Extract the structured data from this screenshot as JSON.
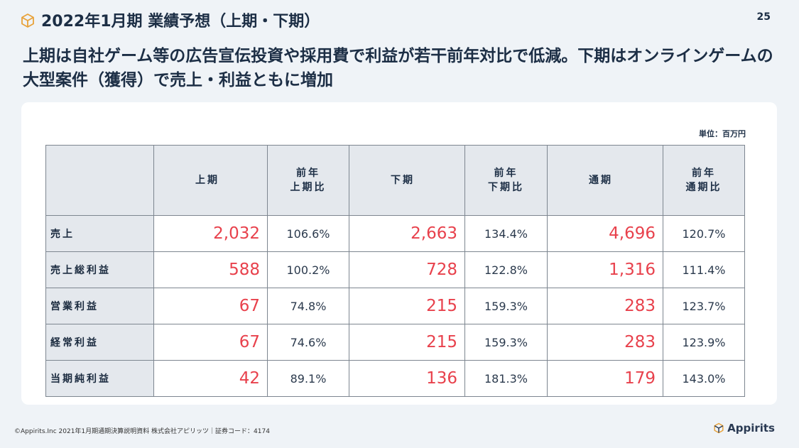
{
  "header": {
    "title": "2022年1月期 業績予想（上期・下期）",
    "page_number": "25",
    "icon": "cube-icon"
  },
  "headline": "上期は自社ゲーム等の広告宣伝投資や採用費で利益が若干前年対比で低減。下期はオンラインゲームの大型案件（獲得）で売上・利益ともに増加",
  "table": {
    "unit": "単位：百万円",
    "headers": {
      "first_half": "上期",
      "first_half_yoy": [
        "前年",
        "上期比"
      ],
      "second_half": "下期",
      "second_half_yoy": [
        "前年",
        "下期比"
      ],
      "full_year": "通期",
      "full_year_yoy": [
        "前年",
        "通期比"
      ]
    },
    "rows": [
      {
        "label": "売上",
        "h1": "2,032",
        "h1_yoy": "106.6%",
        "h2": "2,663",
        "h2_yoy": "134.4%",
        "fy": "4,696",
        "fy_yoy": "120.7%"
      },
      {
        "label": "売上総利益",
        "h1": "588",
        "h1_yoy": "100.2%",
        "h2": "728",
        "h2_yoy": "122.8%",
        "fy": "1,316",
        "fy_yoy": "111.4%"
      },
      {
        "label": "営業利益",
        "h1": "67",
        "h1_yoy": "74.8%",
        "h2": "215",
        "h2_yoy": "159.3%",
        "fy": "283",
        "fy_yoy": "123.7%"
      },
      {
        "label": "経常利益",
        "h1": "67",
        "h1_yoy": "74.6%",
        "h2": "215",
        "h2_yoy": "159.3%",
        "fy": "283",
        "fy_yoy": "123.9%"
      },
      {
        "label": "当期純利益",
        "h1": "42",
        "h1_yoy": "89.1%",
        "h2": "136",
        "h2_yoy": "181.3%",
        "fy": "179",
        "fy_yoy": "143.0%"
      }
    ]
  },
  "footer": {
    "text": "©Appirits.Inc 2021年1月期通期決算説明資料 株式会社アピリッツ｜証券コード：4174",
    "logo_text": "Appirits"
  },
  "colors": {
    "value_red": "#e8414c",
    "navy": "#1c2e45",
    "header_fill": "#e4e8ed",
    "background": "#eff3f7"
  }
}
